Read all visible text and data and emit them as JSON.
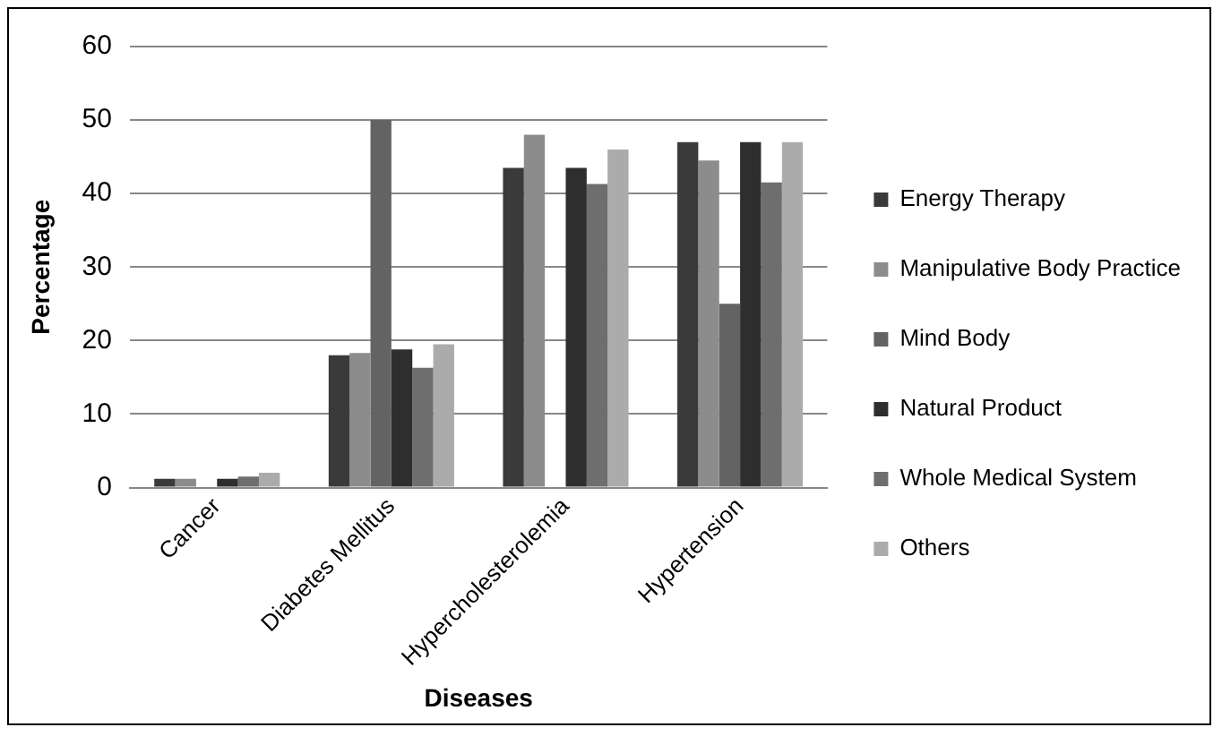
{
  "chart_data": {
    "type": "bar",
    "xlabel": "Diseases",
    "ylabel": "Percentage",
    "categories": [
      "Cancer",
      "Diabetes Mellitus",
      "Hypercholesterolemia",
      "Hypertension"
    ],
    "series": [
      {
        "name": "Energy Therapy",
        "color": "#3a3a3a",
        "values": [
          1.2,
          18,
          43.5,
          47
        ]
      },
      {
        "name": "Manipulative Body Practice",
        "color": "#8c8c8c",
        "values": [
          1.2,
          18.3,
          48,
          44.5
        ]
      },
      {
        "name": "Mind Body",
        "color": "#636363",
        "values": [
          null,
          50,
          null,
          25
        ]
      },
      {
        "name": "Natural Product",
        "color": "#2e2e2e",
        "values": [
          1.2,
          18.8,
          43.5,
          47
        ]
      },
      {
        "name": "Whole Medical System",
        "color": "#6e6e6e",
        "values": [
          1.5,
          16.3,
          41.3,
          41.5
        ]
      },
      {
        "name": "Others",
        "color": "#ababab",
        "values": [
          2,
          19.5,
          46,
          47
        ]
      }
    ],
    "ylim": [
      0,
      60
    ],
    "yticks": [
      0,
      10,
      20,
      30,
      40,
      50,
      60
    ],
    "grid": "y",
    "legend": "right"
  }
}
